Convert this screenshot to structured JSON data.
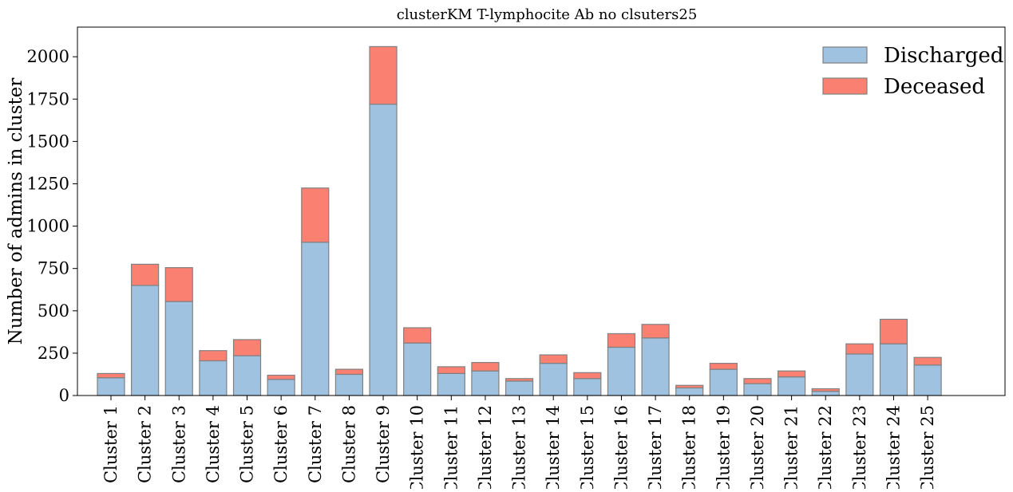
{
  "chart_data": {
    "type": "bar",
    "stacked": true,
    "title": "clusterKM T-lymphocite Ab no clsuters25",
    "xlabel": "",
    "ylabel": "Number of admins in cluster",
    "ylim": [
      0,
      2175
    ],
    "yticks": [
      0,
      250,
      500,
      750,
      1000,
      1250,
      1500,
      1750,
      2000
    ],
    "ytick_labels": [
      "0",
      "250",
      "500",
      "750",
      "1000",
      "1250",
      "1500",
      "1750",
      "2000"
    ],
    "grid": false,
    "legend_position": "top-right",
    "categories": [
      "Cluster 1",
      "Cluster 2",
      "Cluster 3",
      "Cluster 4",
      "Cluster 5",
      "Cluster 6",
      "Cluster 7",
      "Cluster 8",
      "Cluster 9",
      "Cluster 10",
      "Cluster 11",
      "Cluster 12",
      "Cluster 13",
      "Cluster 14",
      "Cluster 15",
      "Cluster 16",
      "Cluster 17",
      "Cluster 18",
      "Cluster 19",
      "Cluster 20",
      "Cluster 21",
      "Cluster 22",
      "Cluster 23",
      "Cluster 24",
      "Cluster 25"
    ],
    "series": [
      {
        "name": "Discharged",
        "color": "#9fc2e1",
        "values": [
          105,
          650,
          555,
          205,
          235,
          95,
          905,
          125,
          1720,
          310,
          130,
          145,
          85,
          190,
          100,
          285,
          340,
          45,
          155,
          70,
          110,
          25,
          245,
          305,
          180
        ]
      },
      {
        "name": "Deceased",
        "color": "#fa8072",
        "values": [
          25,
          125,
          200,
          60,
          95,
          25,
          320,
          30,
          340,
          90,
          40,
          50,
          15,
          50,
          35,
          80,
          80,
          15,
          35,
          30,
          35,
          15,
          60,
          145,
          45
        ]
      }
    ],
    "bar_edge_color": "#808080"
  }
}
